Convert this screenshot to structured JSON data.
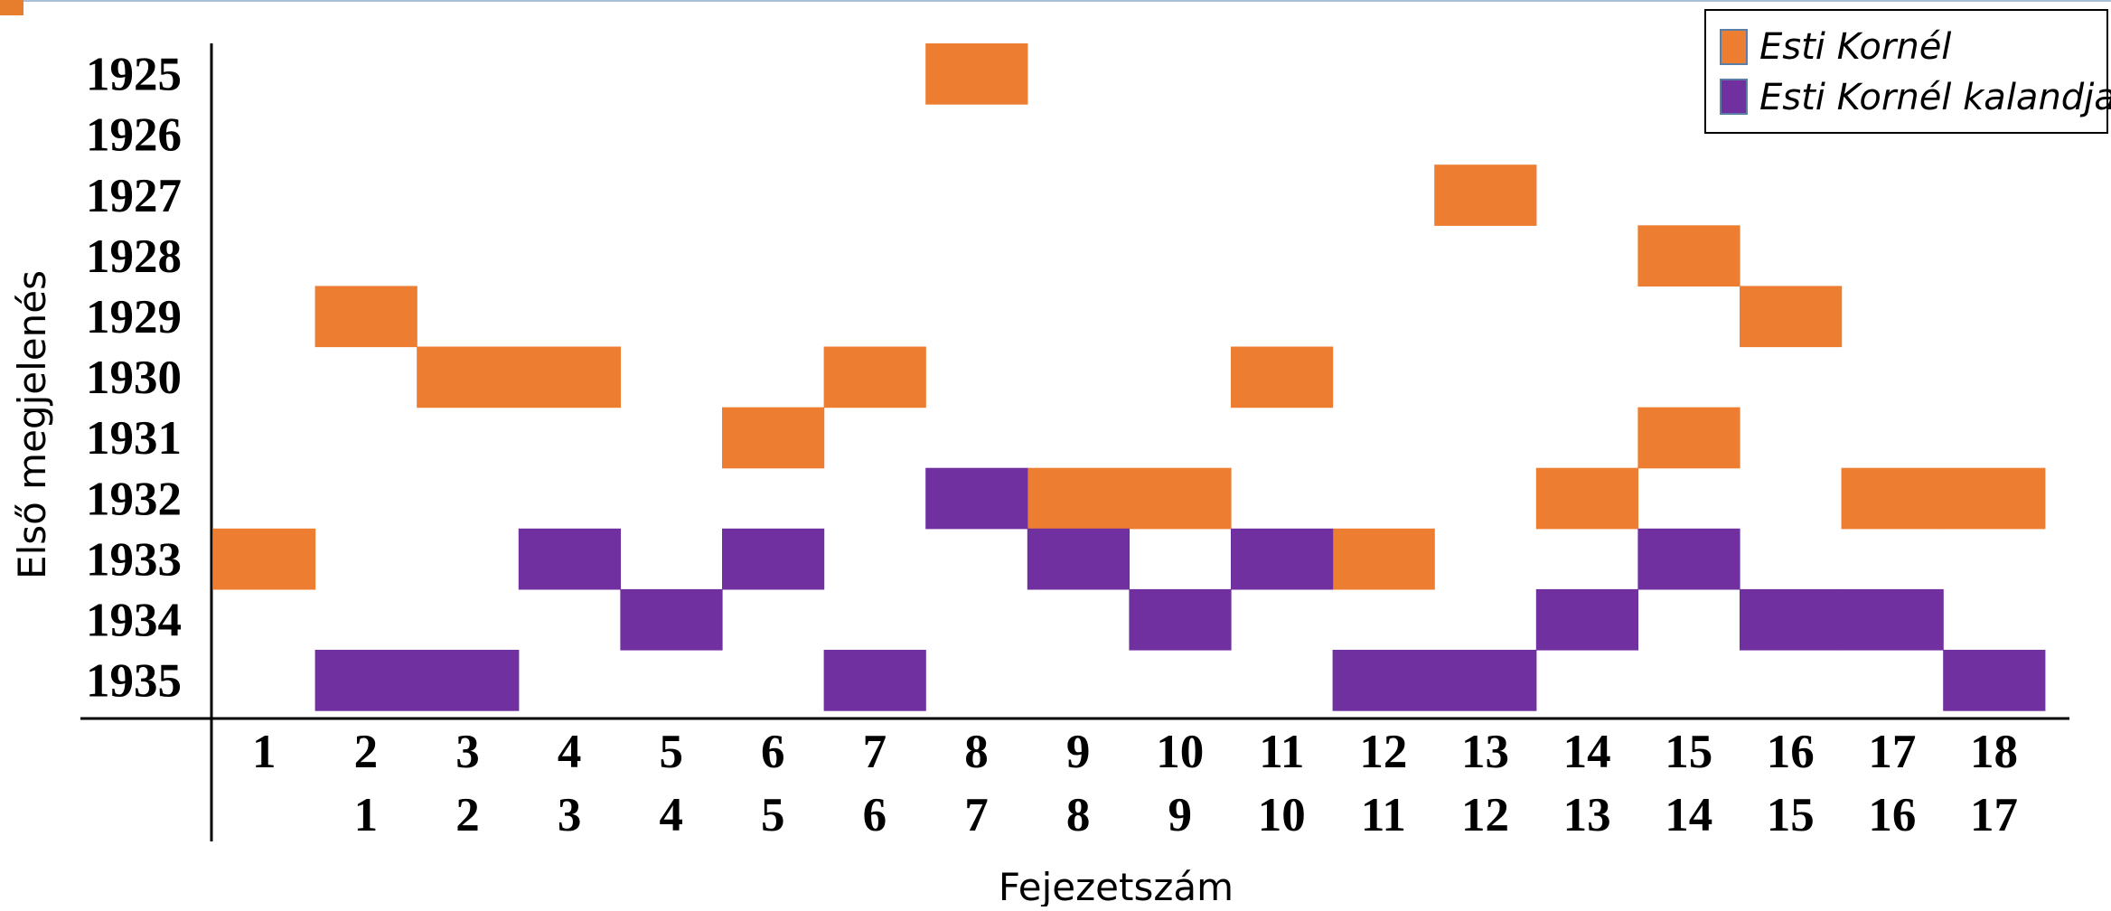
{
  "colors": {
    "series_a": "#ED7D31",
    "series_b": "#7030A0",
    "accent_bar": "#E67E2E"
  },
  "chart_data": {
    "type": "heatmap",
    "xlabel": "Fejezetszám",
    "ylabel": "Első megjelenés",
    "x_tick_rows": [
      [
        "1",
        "2",
        "3",
        "4",
        "5",
        "6",
        "7",
        "8",
        "9",
        "10",
        "11",
        "12",
        "13",
        "14",
        "15",
        "16",
        "17",
        "18"
      ],
      [
        "",
        "1",
        "2",
        "3",
        "4",
        "5",
        "6",
        "7",
        "8",
        "9",
        "10",
        "11",
        "12",
        "13",
        "14",
        "15",
        "16",
        "17"
      ]
    ],
    "y_categories": [
      "1925",
      "1926",
      "1927",
      "1928",
      "1929",
      "1930",
      "1931",
      "1932",
      "1933",
      "1934",
      "1935"
    ],
    "legend_position": "top-right",
    "grid": false,
    "series": [
      {
        "name": "Esti Kornél",
        "color": "#ED7D31",
        "cells": [
          {
            "column": 1,
            "year": 1933
          },
          {
            "column": 2,
            "year": 1929
          },
          {
            "column": 3,
            "year": 1930
          },
          {
            "column": 4,
            "year": 1930
          },
          {
            "column": 6,
            "year": 1931
          },
          {
            "column": 7,
            "year": 1930
          },
          {
            "column": 8,
            "year": 1925
          },
          {
            "column": 9,
            "year": 1932
          },
          {
            "column": 10,
            "year": 1932
          },
          {
            "column": 11,
            "year": 1930
          },
          {
            "column": 12,
            "year": 1933
          },
          {
            "column": 13,
            "year": 1927
          },
          {
            "column": 14,
            "year": 1932
          },
          {
            "column": 15,
            "year": 1928
          },
          {
            "column": 15,
            "year": 1931
          },
          {
            "column": 16,
            "year": 1929
          },
          {
            "column": 17,
            "year": 1932
          },
          {
            "column": 18,
            "year": 1932
          }
        ]
      },
      {
        "name": "Esti Kornél kalandjai",
        "color": "#7030A0",
        "cells": [
          {
            "column": 2,
            "year": 1935
          },
          {
            "column": 3,
            "year": 1935
          },
          {
            "column": 4,
            "year": 1933
          },
          {
            "column": 5,
            "year": 1934
          },
          {
            "column": 6,
            "year": 1933
          },
          {
            "column": 7,
            "year": 1935
          },
          {
            "column": 8,
            "year": 1932
          },
          {
            "column": 9,
            "year": 1933
          },
          {
            "column": 10,
            "year": 1934
          },
          {
            "column": 11,
            "year": 1933
          },
          {
            "column": 12,
            "year": 1935
          },
          {
            "column": 13,
            "year": 1935
          },
          {
            "column": 14,
            "year": 1934
          },
          {
            "column": 15,
            "year": 1933
          },
          {
            "column": 16,
            "year": 1934
          },
          {
            "column": 17,
            "year": 1934
          },
          {
            "column": 18,
            "year": 1935
          }
        ]
      }
    ]
  }
}
